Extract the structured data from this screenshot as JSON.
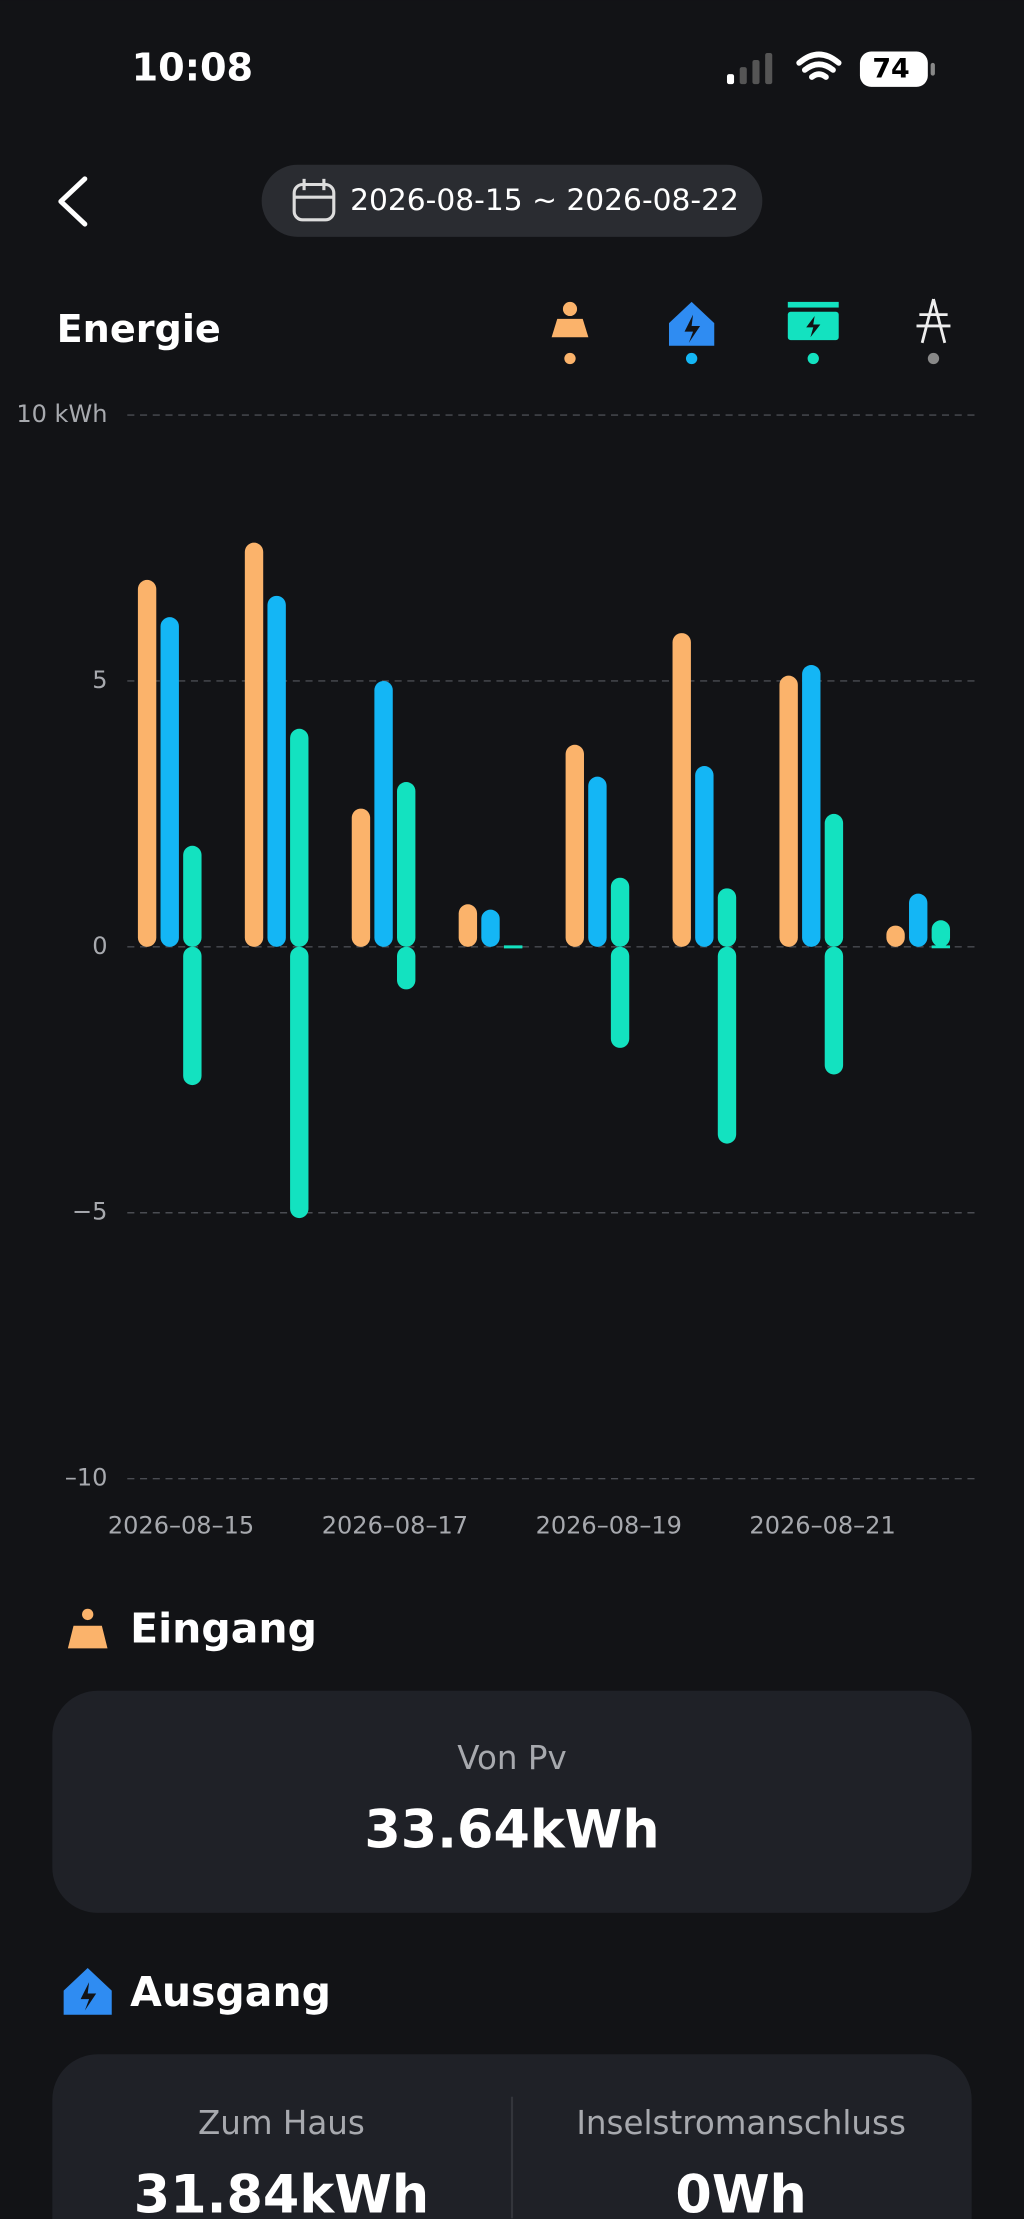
{
  "status_bar": {
    "time": "10:08",
    "battery": "74"
  },
  "header": {
    "date_range": "2026-08-15 ~ 2026-08-22"
  },
  "chart_data": {
    "type": "bar",
    "title": "Energie",
    "categories": [
      "2026–08–15",
      null,
      "2026–08–17",
      null,
      "2026–08–19",
      null,
      "2026–08–21",
      null
    ],
    "series": [
      {
        "color": "#fbb36b",
        "values": [
          6.9,
          7.6,
          2.6,
          0.8,
          3.8,
          5.9,
          5.1,
          0.4
        ]
      },
      {
        "color": "#14b6f5",
        "values": [
          6.2,
          6.6,
          5.0,
          0.7,
          3.2,
          3.4,
          5.3,
          1.0
        ]
      },
      {
        "color": "#13e2c0",
        "values": [
          1.9,
          4.1,
          3.1,
          0,
          1.3,
          1.1,
          2.5,
          0.5
        ]
      },
      {
        "color": "#13e2c0",
        "values": [
          -2.6,
          -5.1,
          -0.8,
          0,
          -1.9,
          -3.7,
          -2.4,
          0
        ]
      }
    ],
    "ylim": [
      -10,
      10
    ],
    "yticks": [
      {
        "value": -10,
        "label": "–10"
      },
      {
        "value": -5,
        "label": "−5"
      },
      0,
      5,
      {
        "value": 10,
        "label": "10 kWh"
      }
    ],
    "grid": true
  },
  "sections": [
    {
      "title": "Eingang",
      "items": [
        {
          "label": "Von Pv",
          "value": "33.64kWh"
        }
      ]
    },
    {
      "title": "Ausgang",
      "items": [
        {
          "label": "Zum Haus",
          "value": "31.84kWh"
        },
        {
          "label": "Inselstromanschluss",
          "value": "0Wh"
        }
      ]
    }
  ]
}
